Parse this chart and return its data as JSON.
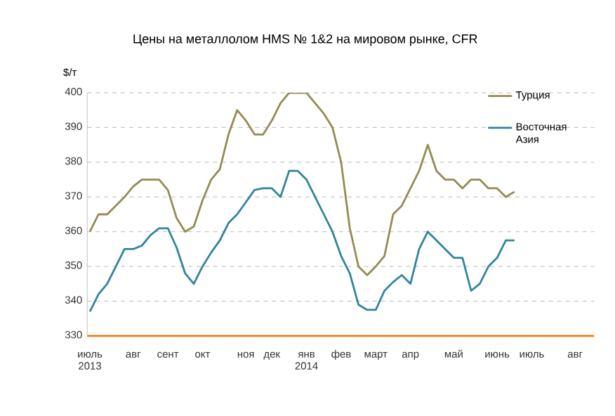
{
  "chart_data": {
    "type": "line",
    "title": "Цены на металлолом HMS № 1&2 на мировом рынке, CFR",
    "ylabel": "$/т",
    "categories": [
      "июль 2013",
      null,
      null,
      null,
      null,
      "авг",
      null,
      null,
      null,
      "сент",
      null,
      null,
      null,
      "окт",
      null,
      null,
      null,
      null,
      "ноя",
      null,
      null,
      "дек",
      null,
      null,
      null,
      "янв 2014",
      null,
      null,
      null,
      "фев",
      null,
      null,
      null,
      "март",
      null,
      null,
      null,
      "апр",
      null,
      null,
      null,
      null,
      "май",
      null,
      null,
      null,
      null,
      "июнь",
      null,
      null,
      null,
      "июль",
      null,
      null,
      null,
      null,
      "авг",
      null
    ],
    "series": [
      {
        "name": "Турция",
        "color": "#948a54",
        "values": [
          360,
          365,
          365,
          367.5,
          370,
          373,
          375,
          375,
          375,
          372,
          364,
          360,
          361.5,
          369,
          375,
          378,
          388,
          395,
          392,
          388,
          388,
          392,
          397,
          400,
          400,
          400,
          397,
          394,
          390,
          380,
          361,
          350,
          347.5,
          350,
          353,
          365,
          367.5,
          372.5,
          377.5,
          385,
          377.5,
          375,
          375,
          372.5,
          375,
          375,
          372.5,
          372.5,
          370,
          371.5,
          null,
          null,
          null,
          null,
          null,
          null,
          null,
          null
        ]
      },
      {
        "name": "Восточная Азия",
        "color": "#31849b",
        "values": [
          337,
          342,
          345,
          350,
          355,
          355,
          356,
          359,
          361,
          361,
          355.5,
          348,
          345,
          350,
          354,
          357.5,
          362.5,
          365,
          368.5,
          372,
          372.5,
          372.5,
          370,
          377.5,
          377.5,
          375,
          370,
          365,
          360,
          353,
          348,
          339,
          337.5,
          337.5,
          343,
          345.5,
          347.5,
          345,
          355,
          360,
          357.5,
          355,
          352.5,
          352.5,
          343,
          345,
          350,
          352.5,
          357.5,
          357.5,
          null,
          null,
          null,
          null,
          null,
          null,
          null,
          null
        ]
      }
    ],
    "ylim": [
      330,
      400
    ],
    "yticks": [
      330,
      340,
      350,
      360,
      370,
      380,
      390,
      400
    ],
    "grid": "y",
    "legend": "top right",
    "marker": "none",
    "line_style": "solid"
  }
}
